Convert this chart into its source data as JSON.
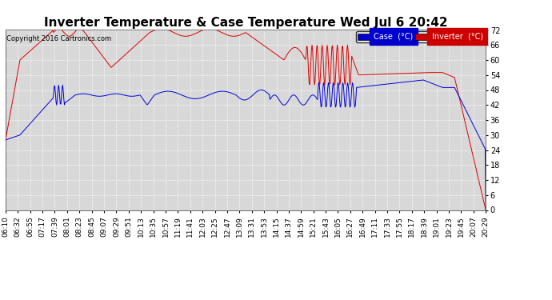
{
  "title": "Inverter Temperature & Case Temperature Wed Jul 6 20:42",
  "copyright": "Copyright 2016 Cartronics.com",
  "ylim": [
    0.0,
    72.0
  ],
  "yticks": [
    0.0,
    6.0,
    12.0,
    18.0,
    24.0,
    30.0,
    36.0,
    42.0,
    48.0,
    54.0,
    60.0,
    66.0,
    72.0
  ],
  "legend_case_label": "Case  (°C)",
  "legend_inverter_label": "Inverter  (°C)",
  "case_color": "#0000dd",
  "inverter_color": "#dd0000",
  "bg_color": "#d8d8d8",
  "title_fontsize": 11,
  "tick_fontsize": 7,
  "x_labels": [
    "06:10",
    "06:32",
    "06:55",
    "07:17",
    "07:39",
    "08:01",
    "08:23",
    "08:45",
    "09:07",
    "09:29",
    "09:51",
    "10:13",
    "10:35",
    "10:57",
    "11:19",
    "11:41",
    "12:03",
    "12:25",
    "12:47",
    "13:09",
    "13:31",
    "13:53",
    "14:15",
    "14:37",
    "14:59",
    "15:21",
    "15:43",
    "16:05",
    "16:27",
    "16:49",
    "17:11",
    "17:33",
    "17:55",
    "18:17",
    "18:39",
    "19:01",
    "19:23",
    "19:45",
    "20:07",
    "20:29"
  ]
}
